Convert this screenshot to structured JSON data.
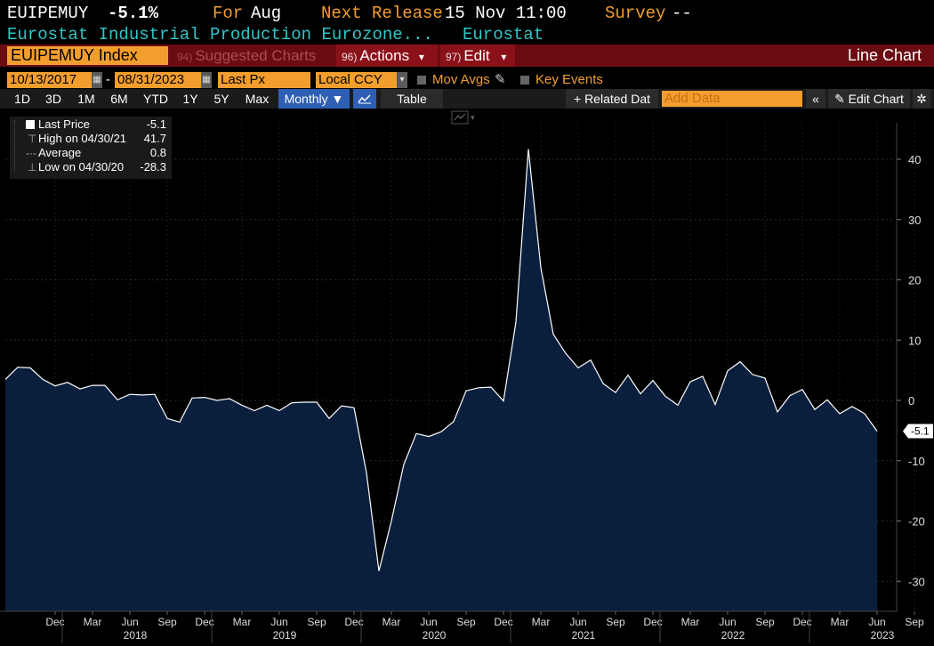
{
  "header": {
    "ticker": "EUIPEMUY",
    "value": "-5.1%",
    "for_label": "For",
    "for_value": "Aug",
    "next_release_label": "Next Release",
    "next_release_value": "15 Nov 11:00",
    "survey_label": "Survey",
    "survey_value": "--",
    "description": "Eurostat Industrial Production Eurozone...",
    "source": "Eurostat"
  },
  "toolbar": {
    "index_field": "EUIPEMUY Index",
    "suggested_num": "94)",
    "suggested_label": "Suggested Charts",
    "actions_num": "96)",
    "actions_label": "Actions",
    "edit_num": "97)",
    "edit_label": "Edit",
    "caret": "▾",
    "chart_title": "Line Chart"
  },
  "controls": {
    "start_date": "10/13/2017",
    "dash": "-",
    "end_date": "08/31/2023",
    "price_field": "Last Px",
    "currency": "Local CCY",
    "mov_avgs": "Mov Avgs",
    "key_events": "Key Events"
  },
  "periods": {
    "items": [
      "1D",
      "3D",
      "1M",
      "6M",
      "YTD",
      "1Y",
      "5Y",
      "Max"
    ],
    "frequency": "Monthly ▼",
    "table": "Table",
    "related": "+ Related Dat",
    "add_data_placeholder": "Add Data",
    "collapse": "«",
    "edit_chart": "✎ Edit Chart",
    "gear": "✲"
  },
  "legend": {
    "last_label": "Last Price",
    "last_value": "-5.1",
    "high_label": "High on 04/30/21",
    "high_value": "41.7",
    "avg_label": "Average",
    "avg_value": "0.8",
    "low_label": "Low on 04/30/20",
    "low_value": "-28.3"
  },
  "colors": {
    "line": "#ffffff",
    "fill": "#0a1f3d",
    "orange": "#f29e2e",
    "teal": "#2ec6c6",
    "grid": "#2a2a2a"
  },
  "chart_data": {
    "type": "area",
    "ylim": [
      -35,
      45
    ],
    "yticks": [
      40,
      30,
      20,
      10,
      0,
      -10,
      -20,
      -30
    ],
    "last_value_label": "-5.1",
    "x_month_labels": [
      "Dec",
      "Mar",
      "Jun",
      "Sep",
      "Dec",
      "Mar",
      "Jun",
      "Sep",
      "Dec",
      "Mar",
      "Jun",
      "Sep",
      "Dec",
      "Mar",
      "Jun",
      "Sep",
      "Dec",
      "Mar",
      "Jun",
      "Sep",
      "Dec",
      "Mar",
      "Jun",
      "Sep"
    ],
    "x_year_labels": [
      "2018",
      "2019",
      "2020",
      "2021",
      "2022",
      "2023"
    ],
    "x": [
      "2017-10",
      "2017-11",
      "2017-12",
      "2018-01",
      "2018-02",
      "2018-03",
      "2018-04",
      "2018-05",
      "2018-06",
      "2018-07",
      "2018-08",
      "2018-09",
      "2018-10",
      "2018-11",
      "2018-12",
      "2019-01",
      "2019-02",
      "2019-03",
      "2019-04",
      "2019-05",
      "2019-06",
      "2019-07",
      "2019-08",
      "2019-09",
      "2019-10",
      "2019-11",
      "2019-12",
      "2020-01",
      "2020-02",
      "2020-03",
      "2020-04",
      "2020-05",
      "2020-06",
      "2020-07",
      "2020-08",
      "2020-09",
      "2020-10",
      "2020-11",
      "2020-12",
      "2021-01",
      "2021-02",
      "2021-03",
      "2021-04",
      "2021-05",
      "2021-06",
      "2021-07",
      "2021-08",
      "2021-09",
      "2021-10",
      "2021-11",
      "2021-12",
      "2022-01",
      "2022-02",
      "2022-03",
      "2022-04",
      "2022-05",
      "2022-06",
      "2022-07",
      "2022-08",
      "2022-09",
      "2022-10",
      "2022-11",
      "2022-12",
      "2023-01",
      "2023-02",
      "2023-03",
      "2023-04",
      "2023-05",
      "2023-06",
      "2023-07",
      "2023-08"
    ],
    "values": [
      3.5,
      5.5,
      5.4,
      3.5,
      2.4,
      3.0,
      1.9,
      2.5,
      2.5,
      0.1,
      1.0,
      0.9,
      1.0,
      -3.0,
      -3.6,
      0.4,
      0.5,
      0.0,
      0.3,
      -0.8,
      -1.7,
      -0.8,
      -1.7,
      -0.4,
      -0.3,
      -0.3,
      -3.0,
      -0.9,
      -1.2,
      -12.0,
      -28.3,
      -20.0,
      -10.6,
      -5.5,
      -6.0,
      -5.2,
      -3.5,
      1.6,
      2.1,
      2.2,
      -0.1,
      13.0,
      41.7,
      22.0,
      11.0,
      7.8,
      5.4,
      6.7,
      2.8,
      1.3,
      4.2,
      1.1,
      3.3,
      0.7,
      -0.8,
      3.1,
      4.0,
      -0.7,
      4.9,
      6.4,
      4.3,
      3.7,
      -1.9,
      0.8,
      1.8,
      -1.5,
      0.1,
      -2.2,
      -1.0,
      -2.2,
      -5.1
    ]
  }
}
